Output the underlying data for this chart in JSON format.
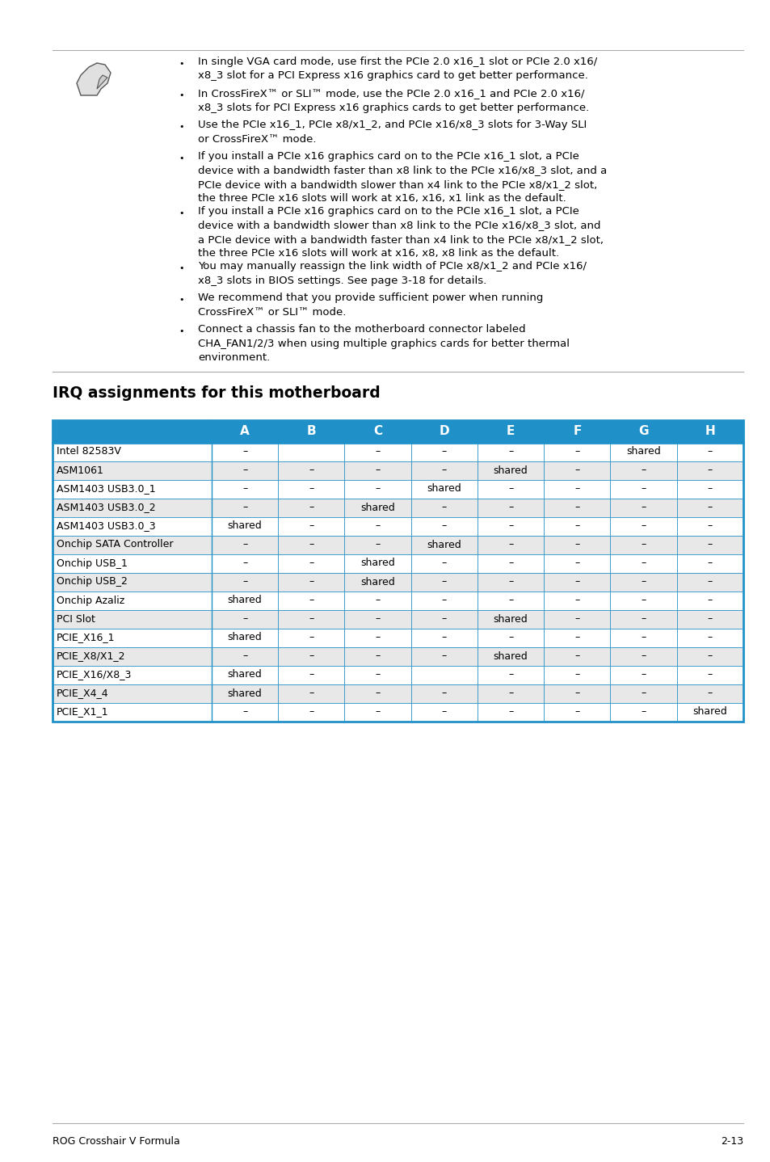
{
  "page_bg": "#ffffff",
  "title_section": "IRQ assignments for this motherboard",
  "footer_left": "ROG Crosshair V Formula",
  "footer_right": "2-13",
  "bullet_points": [
    {
      "text": "In single VGA card mode, use first the PCIe 2.0 x16_1 slot or PCIe 2.0 x16/\nx8_3 slot for a PCI Express x16 graphics card to get better performance.",
      "lines": 2
    },
    {
      "text": "In CrossFireX™ or SLI™ mode, use the PCIe 2.0 x16_1 and PCIe 2.0 x16/\nx8_3 slots for PCI Express x16 graphics cards to get better performance.",
      "lines": 2
    },
    {
      "text": "Use the PCIe x16_1, PCIe x8/x1_2, and PCIe x16/x8_3 slots for 3-Way SLI\nor CrossFireX™ mode.",
      "lines": 2
    },
    {
      "text": "If you install a PCIe x16 graphics card on to the PCIe x16_1 slot, a PCIe\ndevice with a bandwidth faster than x8 link to the PCIe x16/x8_3 slot, and a\nPCIe device with a bandwidth slower than x4 link to the PCIe x8/x1_2 slot,\nthe three PCIe x16 slots will work at x16, x16, x1 link as the default.",
      "lines": 4
    },
    {
      "text": "If you install a PCIe x16 graphics card on to the PCIe x16_1 slot, a PCIe\ndevice with a bandwidth slower than x8 link to the PCIe x16/x8_3 slot, and\na PCIe device with a bandwidth faster than x4 link to the PCIe x8/x1_2 slot,\nthe three PCIe x16 slots will work at x16, x8, x8 link as the default.",
      "lines": 4
    },
    {
      "text": "You may manually reassign the link width of PCIe x8/x1_2 and PCIe x16/\nx8_3 slots in BIOS settings. See page 3-18 for details.",
      "lines": 2
    },
    {
      "text": "We recommend that you provide sufficient power when running\nCrossFireX™ or SLI™ mode.",
      "lines": 2
    },
    {
      "text": "Connect a chassis fan to the motherboard connector labeled\nCHA_FAN1/2/3 when using multiple graphics cards for better thermal\nenvironment.",
      "lines": 3
    }
  ],
  "table_header_labels": [
    "A",
    "B",
    "C",
    "D",
    "E",
    "F",
    "G",
    "H"
  ],
  "table_header_bg": "#2090c8",
  "table_header_color": "#ffffff",
  "table_rows": [
    [
      "Intel 82583V",
      "–",
      "",
      "–",
      "–",
      "–",
      "–",
      "shared",
      "–"
    ],
    [
      "ASM1061",
      "–",
      "–",
      "–",
      "–",
      "shared",
      "–",
      "–",
      "–"
    ],
    [
      "ASM1403 USB3.0_1",
      "–",
      "–",
      "–",
      "shared",
      "–",
      "–",
      "–",
      "–"
    ],
    [
      "ASM1403 USB3.0_2",
      "–",
      "–",
      "shared",
      "–",
      "–",
      "–",
      "–",
      "–"
    ],
    [
      "ASM1403 USB3.0_3",
      "shared",
      "–",
      "–",
      "–",
      "–",
      "–",
      "–",
      "–"
    ],
    [
      "Onchip SATA Controller",
      "–",
      "–",
      "–",
      "shared",
      "–",
      "–",
      "–",
      "–"
    ],
    [
      "Onchip USB_1",
      "–",
      "–",
      "shared",
      "–",
      "–",
      "–",
      "–",
      "–"
    ],
    [
      "Onchip USB_2",
      "–",
      "–",
      "shared",
      "–",
      "–",
      "–",
      "–",
      "–"
    ],
    [
      "Onchip Azaliz",
      "shared",
      "–",
      "–",
      "–",
      "–",
      "–",
      "–",
      "–"
    ],
    [
      "PCI Slot",
      "–",
      "–",
      "–",
      "–",
      "shared",
      "–",
      "–",
      "–"
    ],
    [
      "PCIE_X16_1",
      "shared",
      "–",
      "–",
      "–",
      "–",
      "–",
      "–",
      "–"
    ],
    [
      "PCIE_X8/X1_2",
      "–",
      "–",
      "–",
      "–",
      "shared",
      "–",
      "–",
      "–"
    ],
    [
      "PCIE_X16/X8_3",
      "shared",
      "–",
      "–",
      "",
      "–",
      "–",
      "–",
      "–"
    ],
    [
      "PCIE_X4_4",
      "shared",
      "–",
      "–",
      "–",
      "–",
      "–",
      "–",
      "–"
    ],
    [
      "PCIE_X1_1",
      "–",
      "–",
      "–",
      "–",
      "–",
      "–",
      "–",
      "shared"
    ]
  ],
  "table_row_bg_even": "#ffffff",
  "table_row_bg_odd": "#e8e8e8",
  "table_border_color": "#2090c8",
  "separator_color": "#aaaaaa",
  "text_color": "#000000",
  "text_fontsize": 9.5,
  "title_fontsize": 13.5,
  "footer_fontsize": 9.0,
  "header_fontsize": 11.0,
  "table_fontsize": 9.0
}
